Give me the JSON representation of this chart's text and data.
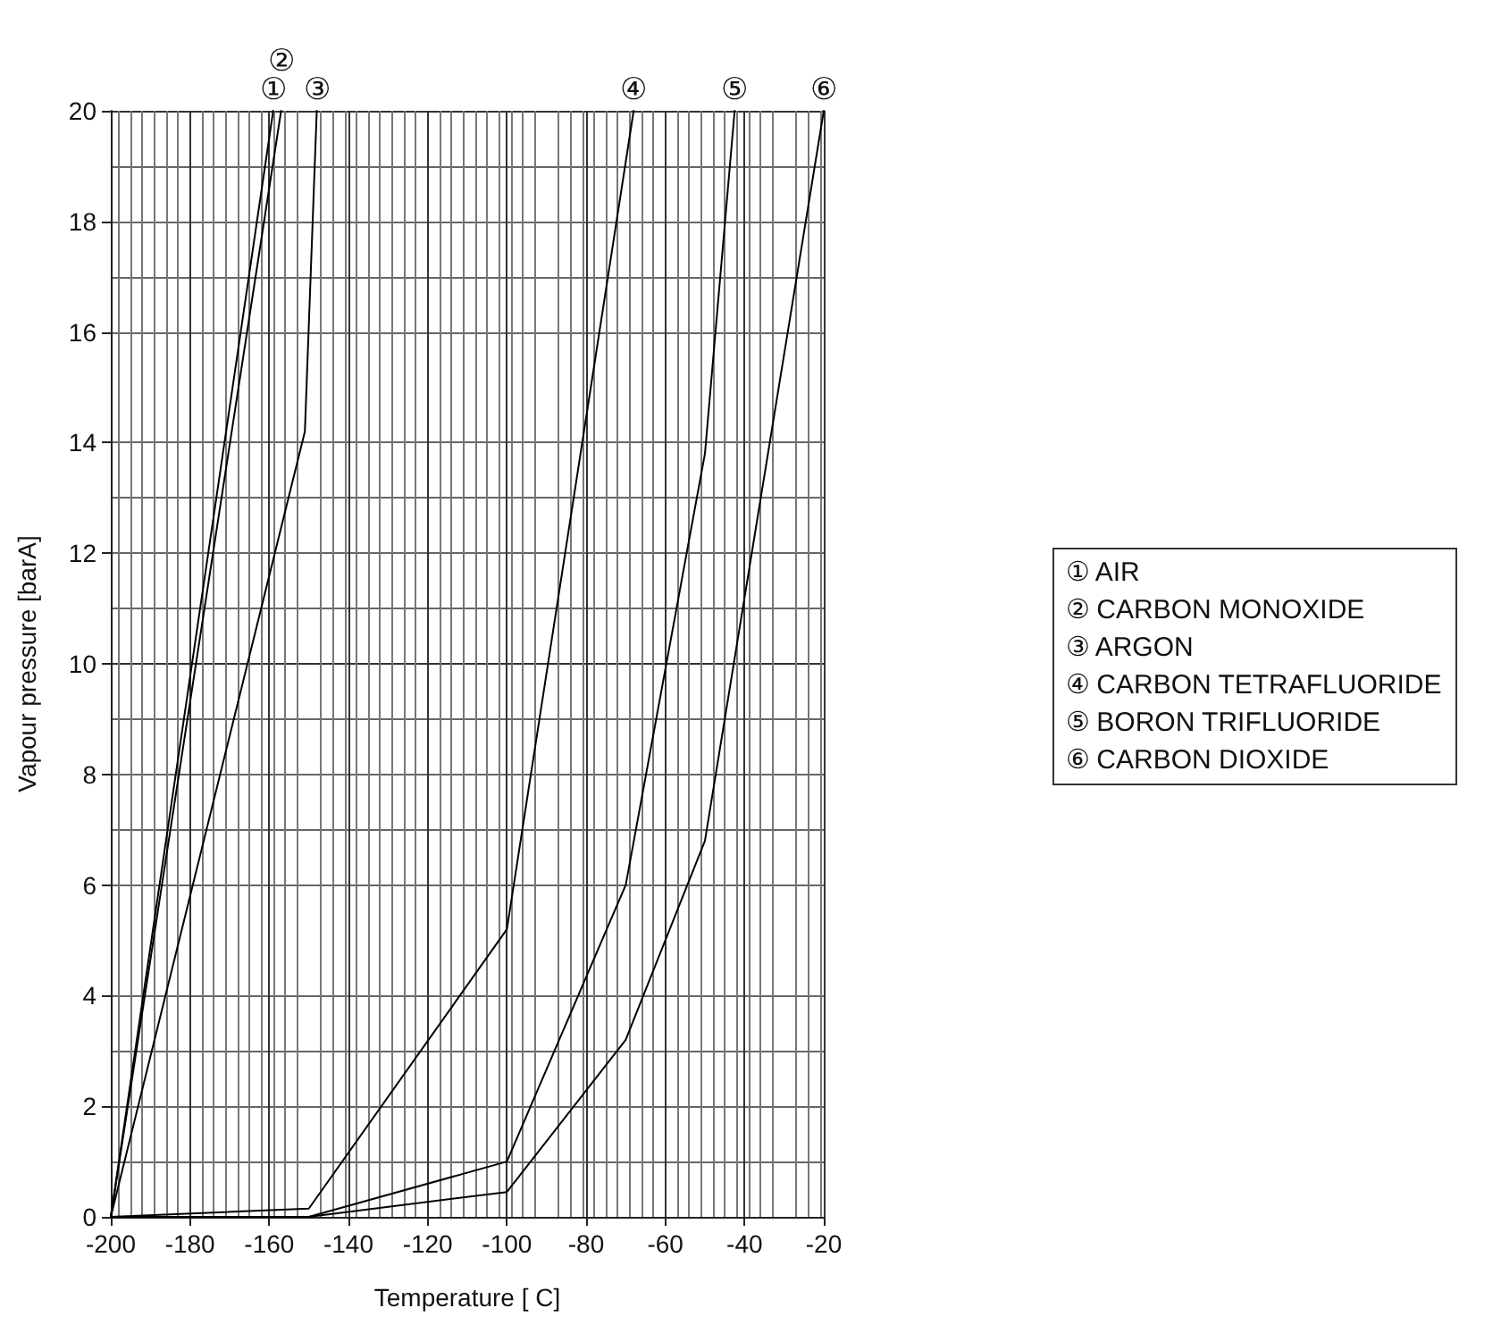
{
  "chart_data": {
    "type": "line",
    "xlabel": "Temperature [ C]",
    "ylabel": "Vapour pressure [barA]",
    "xlim": [
      -200,
      -20
    ],
    "xticks": [
      -200,
      -180,
      -160,
      -140,
      -120,
      -100,
      -80,
      -60,
      -40,
      -20
    ],
    "ylim": [
      0,
      20
    ],
    "yticks": [
      0,
      2,
      4,
      6,
      8,
      10,
      12,
      14,
      16,
      18,
      20
    ],
    "grid": true,
    "legend": "right",
    "marker": "none",
    "line_style": "solid",
    "series": [
      {
        "name": "① AIR",
        "color": "#000000",
        "x": [
          -200,
          -159
        ],
        "values": [
          0,
          20
        ]
      },
      {
        "name": "② CARBON MONOXIDE",
        "color": "#000000",
        "x": [
          -200,
          -157
        ],
        "values": [
          0,
          20
        ]
      },
      {
        "name": "③ ARGON",
        "color": "#000000",
        "x": [
          -200,
          -151,
          -148
        ],
        "values": [
          0,
          14.2,
          20
        ]
      },
      {
        "name": "④ CARBON TETRAFLUORIDE",
        "color": "#000000",
        "x": [
          -200,
          -150,
          -100,
          -68
        ],
        "values": [
          0,
          0.15,
          5.2,
          20
        ]
      },
      {
        "name": "⑤ BORON TRIFLUORIDE",
        "color": "#000000",
        "x": [
          -200,
          -150,
          -100,
          -70,
          -50,
          -42.5
        ],
        "values": [
          0,
          0,
          1.0,
          6.0,
          13.8,
          20
        ]
      },
      {
        "name": "⑥ CARBON DIOXIDE",
        "color": "#000000",
        "x": [
          -200,
          -150,
          -100,
          -70,
          -50,
          -20
        ],
        "values": [
          0,
          0,
          0.45,
          3.2,
          6.8,
          20
        ]
      }
    ],
    "annotations": [
      {
        "text": "①",
        "x": -159,
        "y": 20
      },
      {
        "text": "②",
        "x": -157,
        "y": 20
      },
      {
        "text": "③",
        "x": -148,
        "y": 20
      },
      {
        "text": "④",
        "x": -68,
        "y": 20
      },
      {
        "text": "⑤",
        "x": -42.5,
        "y": 20
      },
      {
        "text": "⑥",
        "x": -20,
        "y": 20
      }
    ]
  }
}
